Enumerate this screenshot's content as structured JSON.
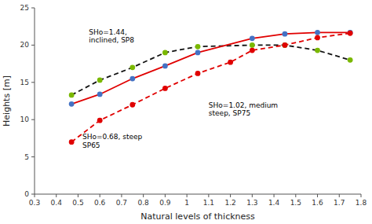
{
  "chart_data": {
    "type": "line",
    "xlabel": "Natural levels of thickness",
    "ylabel": "Heights [m]",
    "xlim": [
      0.3,
      1.8
    ],
    "ylim": [
      0,
      25
    ],
    "xticks": [
      0.3,
      0.4,
      0.5,
      0.6,
      0.7,
      0.8,
      0.9,
      1,
      1.1,
      1.2,
      1.3,
      1.4,
      1.5,
      1.6,
      1.7,
      1.8
    ],
    "yticks": [
      0,
      5,
      10,
      15,
      20,
      25
    ],
    "grid": false,
    "series": [
      {
        "x": [
          0.47,
          0.6,
          0.75,
          0.9,
          1.05,
          1.3,
          1.45,
          1.6,
          1.75
        ],
        "values": [
          13.3,
          15.3,
          17.0,
          19.0,
          19.8,
          20.0,
          20.0,
          19.3,
          18.0
        ],
        "color": "#111111",
        "line_style": "dashed",
        "marker": "circle",
        "colors": [
          "#7ab800",
          "#7ab800",
          "#7ab800",
          "#7ab800",
          "#7ab800",
          "#7ab800",
          "#7ab800",
          "#7ab800",
          "#7ab800"
        ]
      },
      {
        "x": [
          0.47,
          0.6,
          0.75,
          0.9,
          1.05,
          1.3,
          1.45,
          1.6,
          1.75
        ],
        "values": [
          12.1,
          13.4,
          15.5,
          17.2,
          19.0,
          20.9,
          21.5,
          21.7,
          21.7
        ],
        "color": "#e00000",
        "line_style": "solid",
        "marker": "circle",
        "colors": [
          "#4472c4",
          "#4472c4",
          "#4472c4",
          "#4472c4",
          "#4472c4",
          "#4472c4",
          "#4472c4",
          "#4472c4",
          "#4472c4"
        ]
      },
      {
        "x": [
          0.47,
          0.6,
          0.75,
          0.9,
          1.05,
          1.2,
          1.3,
          1.45,
          1.6,
          1.75
        ],
        "values": [
          7.0,
          9.9,
          12.0,
          14.2,
          16.2,
          17.7,
          19.3,
          20.0,
          21.0,
          21.6
        ],
        "color": "#e00000",
        "line_style": "dashed",
        "marker": "circle",
        "colors": [
          "#e00000",
          "#e00000",
          "#e00000",
          "#e00000",
          "#e00000",
          "#e00000",
          "#e00000",
          "#e00000",
          "#e00000",
          "#e00000"
        ]
      }
    ],
    "annotations": [
      {
        "text": "SHo=1.44,\ninclined, SP8",
        "x": 0.55,
        "y": 22.3
      },
      {
        "text": "SHo=1.02, medium\nsteep, SP75",
        "x": 1.1,
        "y": 12.5
      },
      {
        "text": "SHo=0.68, steep\nSP65",
        "x": 0.52,
        "y": 8.2
      }
    ]
  }
}
